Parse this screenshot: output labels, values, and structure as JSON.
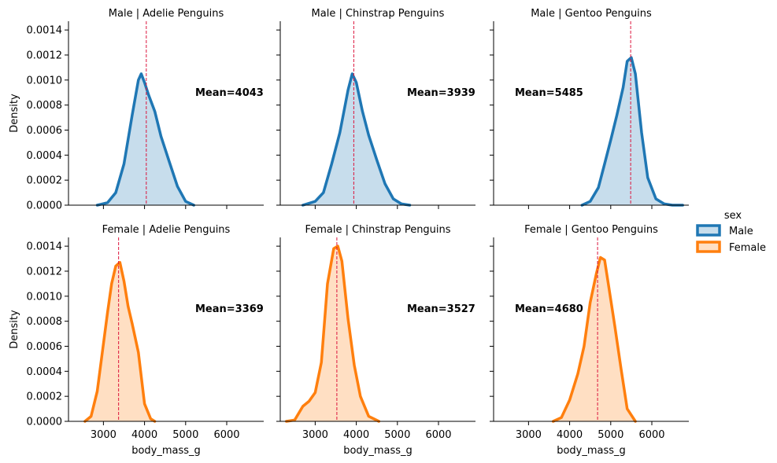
{
  "chart_data": {
    "type": "area",
    "xlabel": "body_mass_g",
    "ylabel": "Density",
    "xlim": [
      2150,
      6900
    ],
    "ylim": [
      0,
      0.00147
    ],
    "xticks": [
      3000,
      4000,
      5000,
      6000
    ],
    "xtick_labels": [
      "3000",
      "4000",
      "5000",
      "6000"
    ],
    "yticks": [
      0,
      0.0002,
      0.0004,
      0.0006,
      0.0008,
      0.001,
      0.0012,
      0.0014
    ],
    "ytick_labels": [
      "0.0000",
      "0.0002",
      "0.0004",
      "0.0006",
      "0.0008",
      "0.0010",
      "0.0012",
      "0.0014"
    ],
    "grid": false,
    "legend": {
      "title": "sex",
      "placement": "right",
      "entries": [
        {
          "label": "Male",
          "color": "#1f77b4"
        },
        {
          "label": "Female",
          "color": "#ff7f0e"
        }
      ]
    },
    "mean_line_color": "#dc143c",
    "panels": [
      {
        "title": "Male | Adelie Penguins",
        "series": "Male",
        "color": "#1f77b4",
        "mean": 4043,
        "mean_label": "Mean=4043",
        "label_side": "right",
        "x": [
          2850,
          3100,
          3300,
          3500,
          3700,
          3850,
          3920,
          4000,
          4100,
          4250,
          4400,
          4600,
          4800,
          5000,
          5200
        ],
        "y": [
          0,
          2e-05,
          0.0001,
          0.00033,
          0.00072,
          0.001,
          0.00105,
          0.00098,
          0.00088,
          0.00075,
          0.00055,
          0.00035,
          0.00015,
          3e-05,
          0
        ]
      },
      {
        "title": "Male | Chinstrap Penguins",
        "series": "Male",
        "color": "#1f77b4",
        "mean": 3939,
        "mean_label": "Mean=3939",
        "label_side": "right",
        "x": [
          2700,
          3000,
          3200,
          3400,
          3600,
          3800,
          3900,
          4000,
          4150,
          4300,
          4500,
          4700,
          4900,
          5100,
          5300
        ],
        "y": [
          0,
          3e-05,
          0.0001,
          0.00033,
          0.00058,
          0.00092,
          0.00105,
          0.00098,
          0.00075,
          0.00056,
          0.00036,
          0.00017,
          5e-05,
          1e-05,
          0
        ]
      },
      {
        "title": "Male | Gentoo Penguins",
        "series": "Male",
        "color": "#1f77b4",
        "mean": 5485,
        "mean_label": "Mean=5485",
        "label_side": "left",
        "x": [
          4300,
          4500,
          4700,
          4850,
          5000,
          5150,
          5300,
          5400,
          5500,
          5600,
          5750,
          5900,
          6100,
          6300,
          6500,
          6750
        ],
        "y": [
          0,
          3e-05,
          0.00014,
          0.00033,
          0.00052,
          0.00072,
          0.00094,
          0.00115,
          0.00118,
          0.00105,
          0.00058,
          0.00022,
          5e-05,
          1e-05,
          0,
          0
        ]
      },
      {
        "title": "Female | Adelie Penguins",
        "series": "Female",
        "color": "#ff7f0e",
        "mean": 3369,
        "mean_label": "Mean=3369",
        "label_side": "right",
        "x": [
          2550,
          2700,
          2850,
          3000,
          3100,
          3200,
          3300,
          3400,
          3500,
          3600,
          3700,
          3850,
          4000,
          4150,
          4250
        ],
        "y": [
          0,
          4e-05,
          0.00024,
          0.00062,
          0.00087,
          0.0011,
          0.00124,
          0.00127,
          0.00112,
          0.00092,
          0.00078,
          0.00055,
          0.00014,
          2e-05,
          0
        ]
      },
      {
        "title": "Female | Chinstrap Penguins",
        "series": "Female",
        "color": "#ff7f0e",
        "mean": 3527,
        "mean_label": "Mean=3527",
        "label_side": "right",
        "x": [
          2300,
          2500,
          2700,
          2850,
          3000,
          3150,
          3300,
          3450,
          3550,
          3650,
          3800,
          3950,
          4100,
          4300,
          4550
        ],
        "y": [
          0,
          1e-05,
          0.00012,
          0.00016,
          0.00023,
          0.00047,
          0.0011,
          0.00138,
          0.0014,
          0.00128,
          0.00082,
          0.00045,
          0.0002,
          4e-05,
          0
        ]
      },
      {
        "title": "Female | Gentoo Penguins",
        "series": "Female",
        "color": "#ff7f0e",
        "mean": 4680,
        "mean_label": "Mean=4680",
        "label_side": "left",
        "x": [
          3600,
          3800,
          4000,
          4200,
          4350,
          4500,
          4650,
          4750,
          4850,
          4950,
          5100,
          5250,
          5400,
          5600
        ],
        "y": [
          0,
          3e-05,
          0.00017,
          0.00038,
          0.0006,
          0.00095,
          0.00118,
          0.00131,
          0.00129,
          0.00108,
          0.00076,
          0.00042,
          0.0001,
          0
        ]
      }
    ]
  }
}
